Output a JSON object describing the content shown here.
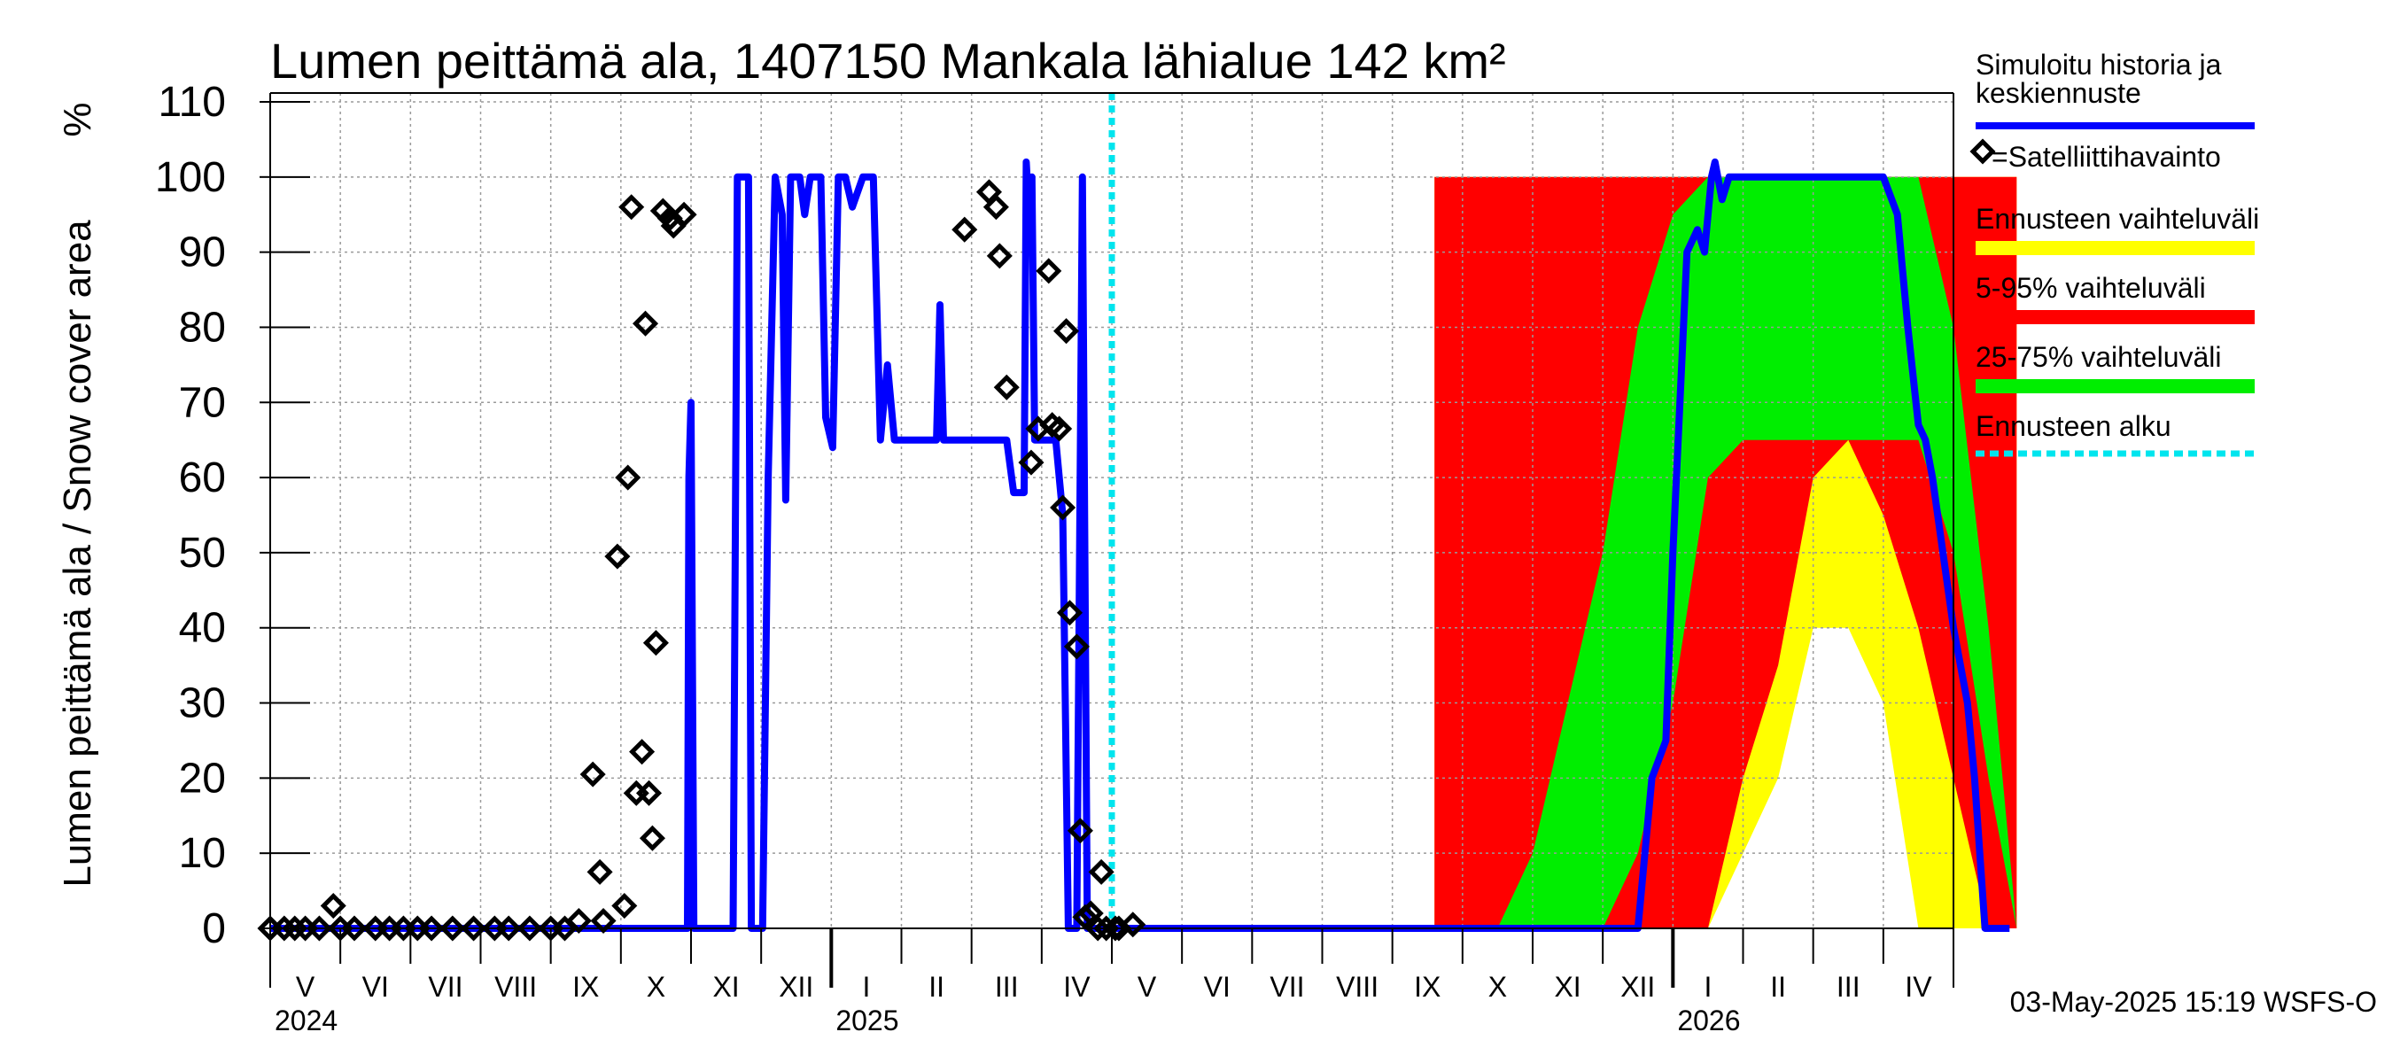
{
  "chart_data": {
    "type": "area",
    "title": "Lumen peittämä ala, 1407150 Mankala lähialue 142 km²",
    "ylabel": "Lumen peittämä ala / Snow cover area",
    "yunit": "%",
    "ylim": [
      0,
      110
    ],
    "yticks": [
      0,
      10,
      20,
      30,
      40,
      50,
      60,
      70,
      80,
      90,
      100,
      110
    ],
    "month_labels": [
      "V",
      "VI",
      "VII",
      "VIII",
      "IX",
      "X",
      "XI",
      "XII",
      "I",
      "II",
      "III",
      "IV",
      "V",
      "VI",
      "VII",
      "VIII",
      "IX",
      "X",
      "XI",
      "XII",
      "I",
      "II",
      "III",
      "IV"
    ],
    "year_labels": [
      {
        "label": "2024",
        "month_index": 0
      },
      {
        "label": "2025",
        "month_index": 8
      },
      {
        "label": "2026",
        "month_index": 20
      }
    ],
    "forecast_start_month": 12.0,
    "legend": [
      {
        "label": "Simuloitu historia ja keskiennuste",
        "color": "#0000ff",
        "style": "line"
      },
      {
        "label": "=Satelliittihavainto",
        "color": "#000000",
        "style": "diamond"
      },
      {
        "label": "Ennusteen vaihteluväli",
        "color": "#ffff00",
        "style": "band"
      },
      {
        "label": "5-95% vaihteluväli",
        "color": "#ff0000",
        "style": "band"
      },
      {
        "label": "25-75% vaihteluväli",
        "color": "#00ee00",
        "style": "band"
      },
      {
        "label": "Ennusteen alku",
        "color": "#00e5ee",
        "style": "dashed"
      }
    ],
    "simulated_series": {
      "name": "Simuloitu historia ja keskiennuste",
      "points": [
        [
          0,
          0
        ],
        [
          5.95,
          0
        ],
        [
          5.97,
          60
        ],
        [
          6.0,
          70
        ],
        [
          6.04,
          0
        ],
        [
          6.6,
          0
        ],
        [
          6.66,
          100
        ],
        [
          6.82,
          100
        ],
        [
          6.86,
          0
        ],
        [
          7.02,
          0
        ],
        [
          7.1,
          60
        ],
        [
          7.2,
          100
        ],
        [
          7.3,
          95
        ],
        [
          7.35,
          57
        ],
        [
          7.42,
          100
        ],
        [
          7.55,
          100
        ],
        [
          7.62,
          95
        ],
        [
          7.7,
          100
        ],
        [
          7.85,
          100
        ],
        [
          7.92,
          68
        ],
        [
          8.02,
          64
        ],
        [
          8.1,
          100
        ],
        [
          8.2,
          100
        ],
        [
          8.3,
          96
        ],
        [
          8.45,
          100
        ],
        [
          8.6,
          100
        ],
        [
          8.7,
          65
        ],
        [
          8.8,
          75
        ],
        [
          8.9,
          65
        ],
        [
          9.5,
          65
        ],
        [
          9.55,
          83
        ],
        [
          9.6,
          65
        ],
        [
          10.3,
          65
        ],
        [
          10.5,
          65
        ],
        [
          10.6,
          58
        ],
        [
          10.75,
          58
        ],
        [
          10.78,
          102
        ],
        [
          10.82,
          95
        ],
        [
          10.86,
          100
        ],
        [
          10.9,
          65
        ],
        [
          11.2,
          65
        ],
        [
          11.3,
          55
        ],
        [
          11.38,
          0
        ],
        [
          11.5,
          0
        ],
        [
          11.58,
          100
        ],
        [
          11.65,
          0
        ],
        [
          12.0,
          0
        ],
        [
          18.5,
          0
        ],
        [
          19.5,
          0
        ],
        [
          19.7,
          20
        ],
        [
          19.9,
          25
        ],
        [
          20.0,
          50
        ],
        [
          20.15,
          80
        ],
        [
          20.2,
          90
        ],
        [
          20.35,
          93
        ],
        [
          20.45,
          90
        ],
        [
          20.55,
          100
        ],
        [
          20.6,
          102
        ],
        [
          20.7,
          97
        ],
        [
          20.8,
          100
        ],
        [
          23.0,
          100
        ],
        [
          23.2,
          95
        ],
        [
          23.35,
          80
        ],
        [
          23.5,
          67
        ],
        [
          23.6,
          65
        ],
        [
          23.7,
          60
        ],
        [
          23.85,
          50
        ],
        [
          24.0,
          40
        ],
        [
          24.2,
          30
        ],
        [
          24.3,
          20
        ],
        [
          24.45,
          0
        ],
        [
          24.8,
          0
        ]
      ]
    },
    "satellite_observations": [
      [
        0,
        0
      ],
      [
        0.2,
        0
      ],
      [
        0.35,
        0
      ],
      [
        0.5,
        0
      ],
      [
        0.7,
        0
      ],
      [
        0.9,
        3
      ],
      [
        1.0,
        0
      ],
      [
        1.2,
        0
      ],
      [
        1.5,
        0
      ],
      [
        1.7,
        0
      ],
      [
        1.9,
        0
      ],
      [
        2.1,
        0
      ],
      [
        2.3,
        0
      ],
      [
        2.6,
        0
      ],
      [
        2.9,
        0
      ],
      [
        3.2,
        0
      ],
      [
        3.4,
        0
      ],
      [
        3.7,
        0
      ],
      [
        4.0,
        0
      ],
      [
        4.2,
        0
      ],
      [
        4.4,
        1
      ],
      [
        4.6,
        20.5
      ],
      [
        4.7,
        7.5
      ],
      [
        4.75,
        1
      ],
      [
        4.95,
        49.5
      ],
      [
        5.05,
        3
      ],
      [
        5.1,
        60
      ],
      [
        5.15,
        96
      ],
      [
        5.22,
        18
      ],
      [
        5.3,
        23.5
      ],
      [
        5.35,
        80.5
      ],
      [
        5.4,
        18
      ],
      [
        5.45,
        12
      ],
      [
        5.5,
        38
      ],
      [
        5.6,
        95.5
      ],
      [
        5.7,
        94.5
      ],
      [
        5.75,
        93.5
      ],
      [
        5.9,
        95
      ],
      [
        9.9,
        93
      ],
      [
        10.25,
        98
      ],
      [
        10.35,
        96
      ],
      [
        10.4,
        89.5
      ],
      [
        10.5,
        72
      ],
      [
        10.85,
        62
      ],
      [
        10.95,
        66.5
      ],
      [
        11.1,
        87.5
      ],
      [
        11.15,
        67
      ],
      [
        11.25,
        66.5
      ],
      [
        11.3,
        56
      ],
      [
        11.35,
        79.5
      ],
      [
        11.4,
        42
      ],
      [
        11.5,
        37.5
      ],
      [
        11.55,
        13
      ],
      [
        11.62,
        1.5
      ],
      [
        11.7,
        2
      ],
      [
        11.8,
        0
      ],
      [
        11.85,
        7.5
      ],
      [
        11.92,
        0
      ],
      [
        12.05,
        0
      ],
      [
        12.1,
        0
      ],
      [
        12.3,
        0.5
      ]
    ],
    "forecast_bands": {
      "x": [
        16.6,
        17.0,
        17.5,
        18.0,
        18.5,
        19.0,
        19.5,
        20.0,
        20.5,
        21.0,
        21.5,
        22.0,
        22.5,
        23.0,
        23.5,
        24.0,
        24.5,
        24.9
      ],
      "ennuste_min": [
        0,
        0,
        0,
        0,
        0,
        0,
        0,
        0,
        0,
        10,
        20,
        40,
        40,
        30,
        0,
        0,
        0,
        0
      ],
      "ennuste_max": [
        100,
        100,
        100,
        100,
        100,
        100,
        100,
        100,
        100,
        100,
        100,
        100,
        100,
        100,
        100,
        100,
        100,
        100
      ],
      "p5": [
        0,
        0,
        0,
        0,
        0,
        0,
        0,
        0,
        0,
        20,
        35,
        60,
        65,
        55,
        40,
        20,
        0,
        0
      ],
      "p95": [
        100,
        100,
        100,
        100,
        100,
        100,
        100,
        100,
        100,
        100,
        100,
        100,
        100,
        100,
        100,
        100,
        100,
        100
      ],
      "p25": [
        0,
        0,
        0,
        0,
        0,
        0,
        10,
        30,
        60,
        65,
        65,
        65,
        65,
        65,
        65,
        50,
        20,
        0
      ],
      "p75": [
        0,
        0,
        0,
        10,
        30,
        50,
        80,
        95,
        100,
        100,
        100,
        100,
        100,
        100,
        100,
        80,
        40,
        0
      ]
    },
    "timestamp": "03-May-2025 15:19 WSFS-O"
  }
}
